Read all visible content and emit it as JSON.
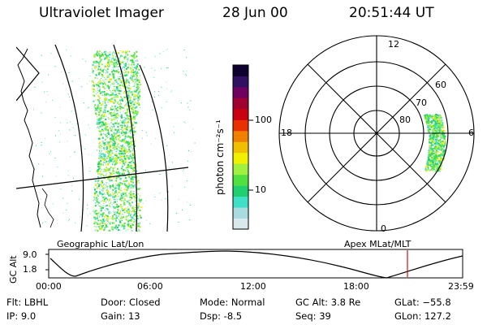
{
  "header": {
    "instrument": "Ultraviolet Imager",
    "date": "28 Jun 00",
    "time": "20:51:44 UT"
  },
  "colorbar": {
    "unit_label": "photon cm⁻²s⁻¹",
    "tick_labels": [
      "100",
      "10"
    ],
    "colors": [
      "#d8e8ec",
      "#a8dce0",
      "#40e0c8",
      "#20d070",
      "#50e040",
      "#a0f040",
      "#f0f000",
      "#f0c000",
      "#f08000",
      "#e83000",
      "#c80010",
      "#a00030",
      "#700060",
      "#301060",
      "#100030"
    ]
  },
  "polar_plot": {
    "mlt_labels": {
      "top": "12",
      "left": "18",
      "right": "6",
      "bottom": "0"
    },
    "lat_labels": [
      "60",
      "70",
      "80"
    ]
  },
  "geo_panel": {
    "label": "Geographic Lat/Lon"
  },
  "apex_panel": {
    "label": "Apex MLat/MLT"
  },
  "altitude_plot": {
    "ylabel": "GC Alt",
    "ytick_labels": [
      "9.0",
      "1.8"
    ],
    "xtick_labels": [
      "00:00",
      "06:00",
      "12:00",
      "18:00",
      "23:59"
    ]
  },
  "status": {
    "flt": "Flt: LBHL",
    "ip": "IP:  9.0",
    "door": "Door: Closed",
    "gain": "Gain: 13",
    "mode": "Mode: Normal",
    "dsp": "Dsp:   -8.5",
    "gc_alt": "GC Alt: 3.8 Re",
    "seq": "Seq: 39",
    "glat": "GLat: −55.8",
    "glon": "GLon: 127.2"
  }
}
